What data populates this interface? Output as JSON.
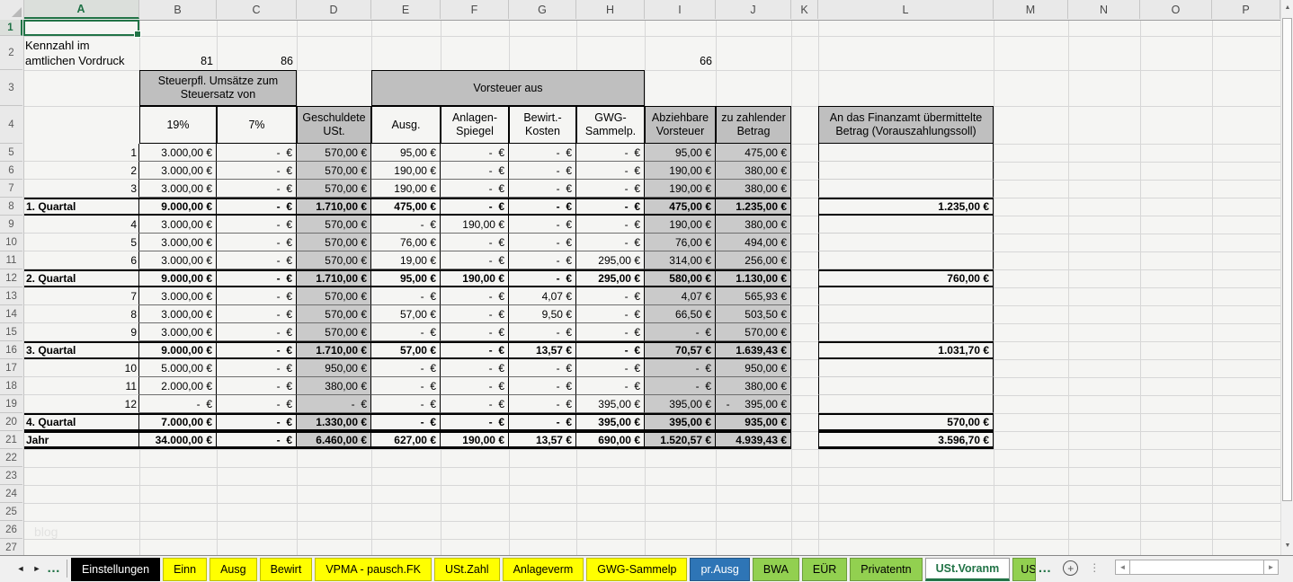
{
  "grid": {
    "columns": [
      "A",
      "B",
      "C",
      "D",
      "E",
      "F",
      "G",
      "H",
      "I",
      "J",
      "K",
      "L",
      "M",
      "N",
      "O",
      "P"
    ],
    "rows": [
      "1",
      "2",
      "3",
      "4",
      "5",
      "6",
      "7",
      "8",
      "9",
      "10",
      "11",
      "12",
      "13",
      "14",
      "15",
      "16",
      "17",
      "18",
      "19",
      "20",
      "21",
      "22",
      "23",
      "24",
      "25",
      "26",
      "27"
    ],
    "active_cell": "A1"
  },
  "sheet": {
    "kennzahl_label": "Kennzahl im amtlichen Vordruck",
    "kennzahl_b": "81",
    "kennzahl_c": "86",
    "kennzahl_i": "66",
    "h_steuerpfl": "Steuerpfl. Umsätze zum Steuersatz von",
    "h_vorsteuer": "Vorsteuer aus",
    "h_19": "19%",
    "h_7": "7%",
    "h_geschuldete": "Geschuldete USt.",
    "h_ausg": "Ausg.",
    "h_anlagen": "Anlagen-Spiegel",
    "h_bewirt": "Bewirt.-Kosten",
    "h_gwg": "GWG-Sammelp.",
    "h_abziehbare": "Abziehbare Vorsteuer",
    "h_zahlender": "zu zahlender Betrag",
    "h_finanzamt": "An das Finanzamt übermittelte Betrag (Vorauszahlungssoll)",
    "watermark": "blog"
  },
  "table": {
    "rows": [
      {
        "row": 5,
        "type": "month",
        "label": "1",
        "b": "3.000,00 €",
        "c": "-  €",
        "d": "570,00 €",
        "e": "95,00 €",
        "f": "-  €",
        "g": "-  €",
        "h": "-  €",
        "i": "95,00 €",
        "j": "475,00 €",
        "l": ""
      },
      {
        "row": 6,
        "type": "month",
        "label": "2",
        "b": "3.000,00 €",
        "c": "-  €",
        "d": "570,00 €",
        "e": "190,00 €",
        "f": "-  €",
        "g": "-  €",
        "h": "-  €",
        "i": "190,00 €",
        "j": "380,00 €",
        "l": ""
      },
      {
        "row": 7,
        "type": "month",
        "label": "3",
        "b": "3.000,00 €",
        "c": "-  €",
        "d": "570,00 €",
        "e": "190,00 €",
        "f": "-  €",
        "g": "-  €",
        "h": "-  €",
        "i": "190,00 €",
        "j": "380,00 €",
        "l": ""
      },
      {
        "row": 8,
        "type": "quarter",
        "label": "1. Quartal",
        "b": "9.000,00 €",
        "c": "-  €",
        "d": "1.710,00 €",
        "e": "475,00 €",
        "f": "-  €",
        "g": "-  €",
        "h": "-  €",
        "i": "475,00 €",
        "j": "1.235,00 €",
        "l": "1.235,00 €"
      },
      {
        "row": 9,
        "type": "month",
        "label": "4",
        "b": "3.000,00 €",
        "c": "-  €",
        "d": "570,00 €",
        "e": "-  €",
        "f": "190,00 €",
        "g": "-  €",
        "h": "-  €",
        "i": "190,00 €",
        "j": "380,00 €",
        "l": ""
      },
      {
        "row": 10,
        "type": "month",
        "label": "5",
        "b": "3.000,00 €",
        "c": "-  €",
        "d": "570,00 €",
        "e": "76,00 €",
        "f": "-  €",
        "g": "-  €",
        "h": "-  €",
        "i": "76,00 €",
        "j": "494,00 €",
        "l": ""
      },
      {
        "row": 11,
        "type": "month",
        "label": "6",
        "b": "3.000,00 €",
        "c": "-  €",
        "d": "570,00 €",
        "e": "19,00 €",
        "f": "-  €",
        "g": "-  €",
        "h": "295,00 €",
        "i": "314,00 €",
        "j": "256,00 €",
        "l": ""
      },
      {
        "row": 12,
        "type": "quarter",
        "label": "2. Quartal",
        "b": "9.000,00 €",
        "c": "-  €",
        "d": "1.710,00 €",
        "e": "95,00 €",
        "f": "190,00 €",
        "g": "-  €",
        "h": "295,00 €",
        "i": "580,00 €",
        "j": "1.130,00 €",
        "l": "760,00 €"
      },
      {
        "row": 13,
        "type": "month",
        "label": "7",
        "b": "3.000,00 €",
        "c": "-  €",
        "d": "570,00 €",
        "e": "-  €",
        "f": "-  €",
        "g": "4,07 €",
        "h": "-  €",
        "i": "4,07 €",
        "j": "565,93 €",
        "l": ""
      },
      {
        "row": 14,
        "type": "month",
        "label": "8",
        "b": "3.000,00 €",
        "c": "-  €",
        "d": "570,00 €",
        "e": "57,00 €",
        "f": "-  €",
        "g": "9,50 €",
        "h": "-  €",
        "i": "66,50 €",
        "j": "503,50 €",
        "l": ""
      },
      {
        "row": 15,
        "type": "month",
        "label": "9",
        "b": "3.000,00 €",
        "c": "-  €",
        "d": "570,00 €",
        "e": "-  €",
        "f": "-  €",
        "g": "-  €",
        "h": "-  €",
        "i": "-  €",
        "j": "570,00 €",
        "l": ""
      },
      {
        "row": 16,
        "type": "quarter",
        "label": "3. Quartal",
        "b": "9.000,00 €",
        "c": "-  €",
        "d": "1.710,00 €",
        "e": "57,00 €",
        "f": "-  €",
        "g": "13,57 €",
        "h": "-  €",
        "i": "70,57 €",
        "j": "1.639,43 €",
        "l": "1.031,70 €"
      },
      {
        "row": 17,
        "type": "month",
        "label": "10",
        "b": "5.000,00 €",
        "c": "-  €",
        "d": "950,00 €",
        "e": "-  €",
        "f": "-  €",
        "g": "-  €",
        "h": "-  €",
        "i": "-  €",
        "j": "950,00 €",
        "l": ""
      },
      {
        "row": 18,
        "type": "month",
        "label": "11",
        "b": "2.000,00 €",
        "c": "-  €",
        "d": "380,00 €",
        "e": "-  €",
        "f": "-  €",
        "g": "-  €",
        "h": "-  €",
        "i": "-  €",
        "j": "380,00 €",
        "l": ""
      },
      {
        "row": 19,
        "type": "month",
        "label": "12",
        "b": "-  €",
        "c": "-  €",
        "d": "-  €",
        "e": "-  €",
        "f": "-  €",
        "g": "-  €",
        "h": "395,00 €",
        "i": "395,00 €",
        "j": "-     395,00 €",
        "l": ""
      },
      {
        "row": 20,
        "type": "quarter",
        "label": "4. Quartal",
        "b": "7.000,00 €",
        "c": "-  €",
        "d": "1.330,00 €",
        "e": "-  €",
        "f": "-  €",
        "g": "-  €",
        "h": "395,00 €",
        "i": "395,00 €",
        "j": "935,00 €",
        "l": "570,00 €"
      },
      {
        "row": 21,
        "type": "year",
        "label": "Jahr",
        "b": "34.000,00 €",
        "c": "-  €",
        "d": "6.460,00 €",
        "e": "627,00 €",
        "f": "190,00 €",
        "g": "13,57 €",
        "h": "690,00 €",
        "i": "1.520,57 €",
        "j": "4.939,43 €",
        "l": "3.596,70 €"
      }
    ]
  },
  "tabbar": {
    "nav_left": "◄",
    "nav_right": "►",
    "overflow_left": "…",
    "overflow_right": "…",
    "add": "+",
    "more": "⋮",
    "scroll_left": "◄",
    "scroll_right": "►",
    "tabs": [
      {
        "label": "Einstellungen",
        "style": "black"
      },
      {
        "label": "Einn",
        "style": "yellow"
      },
      {
        "label": "Ausg",
        "style": "yellow"
      },
      {
        "label": "Bewirt",
        "style": "yellow"
      },
      {
        "label": "VPMA - pausch.FK",
        "style": "yellow"
      },
      {
        "label": "USt.Zahl",
        "style": "yellow"
      },
      {
        "label": "Anlageverm",
        "style": "yellow"
      },
      {
        "label": "GWG-Sammelp",
        "style": "yellow"
      },
      {
        "label": "pr.Ausg",
        "style": "blue"
      },
      {
        "label": "BWA",
        "style": "green"
      },
      {
        "label": "EÜR",
        "style": "green"
      },
      {
        "label": "Privatentn",
        "style": "green"
      },
      {
        "label": "USt.Voranm",
        "style": "active"
      },
      {
        "label": "US",
        "style": "green_cut"
      }
    ]
  },
  "vscroll": {
    "up": "▲",
    "down": "▼"
  },
  "colors": {
    "accent_green": "#217346",
    "tab_yellow": "#FFFF00",
    "tab_green": "#92D050",
    "tab_blue": "#2E75B6",
    "header_gray": "#BFBFBF",
    "cell_gray": "#CACACA"
  }
}
